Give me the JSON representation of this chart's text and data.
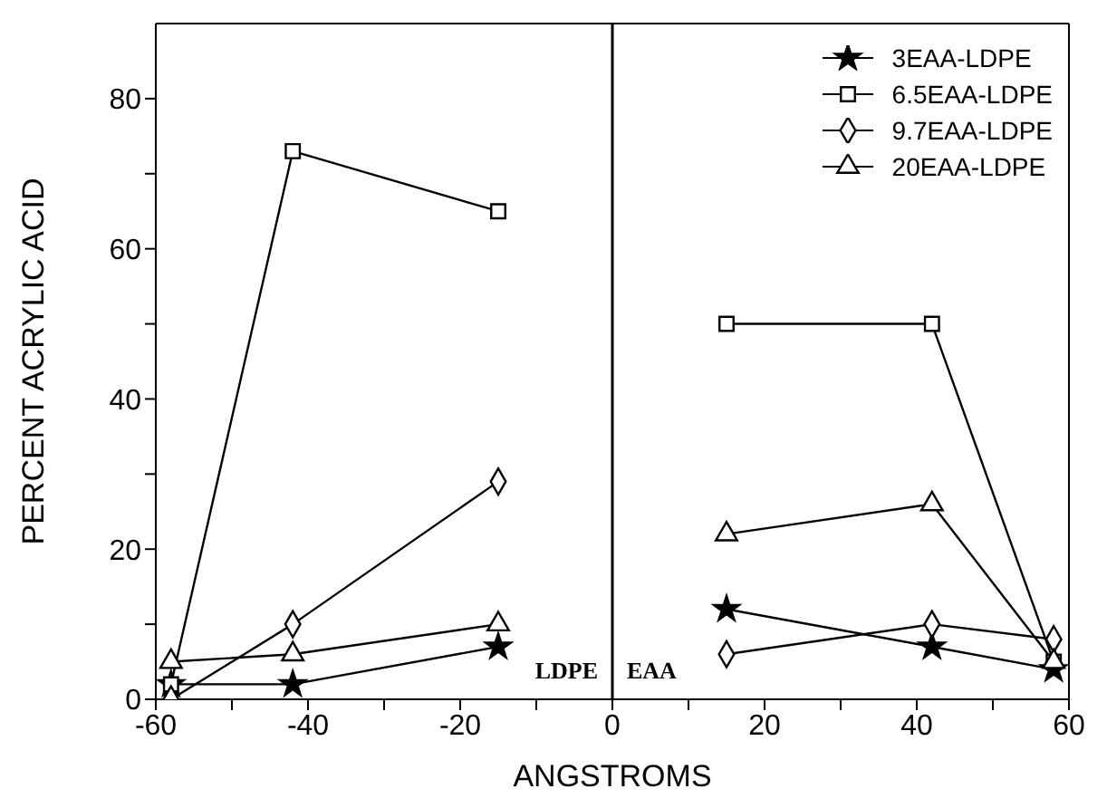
{
  "chart_data": {
    "type": "line",
    "xlabel": "ANGSTROMS",
    "ylabel": "PERCENT ACRYLIC ACID",
    "x": [
      -58,
      -42,
      -15,
      0,
      15,
      42,
      58
    ],
    "series": [
      {
        "name": "3EAA-LDPE",
        "color": "#000000",
        "marker": "star",
        "values": [
          2,
          2,
          7,
          null,
          12,
          7,
          4
        ]
      },
      {
        "name": "6.5EAA-LDPE",
        "color": "#000000",
        "marker": "square",
        "values": [
          2,
          73,
          65,
          null,
          50,
          50,
          5
        ]
      },
      {
        "name": "9.7EAA-LDPE",
        "color": "#000000",
        "marker": "diamond",
        "values": [
          0,
          10,
          29,
          null,
          6,
          10,
          8
        ]
      },
      {
        "name": "20EAA-LDPE",
        "color": "#000000",
        "marker": "triangle",
        "values": [
          5,
          6,
          10,
          null,
          22,
          26,
          5
        ]
      }
    ],
    "xlim": [
      -60,
      60
    ],
    "xticks": [
      -60,
      {
        "value": -50,
        "label": null
      },
      -40,
      {
        "value": -30,
        "label": null
      },
      -20,
      {
        "value": -10,
        "label": null
      },
      0,
      {
        "value": 10,
        "label": null
      },
      20,
      {
        "value": 30,
        "label": null
      },
      40,
      {
        "value": 50,
        "label": null
      },
      60
    ],
    "ylim": [
      0,
      90
    ],
    "yticks": [
      0,
      {
        "value": 10,
        "label": null
      },
      20,
      {
        "value": 30,
        "label": null
      },
      40,
      {
        "value": 50,
        "label": null
      },
      60,
      {
        "value": 70,
        "label": null
      },
      80
    ],
    "ref_lines": [
      {
        "axis": "x",
        "value": 0,
        "color": "#000000",
        "line_style": "solid"
      }
    ],
    "annotations": [
      "LDPE",
      "EAA"
    ],
    "grid": false,
    "legend": "top right",
    "line_style": "solid"
  }
}
